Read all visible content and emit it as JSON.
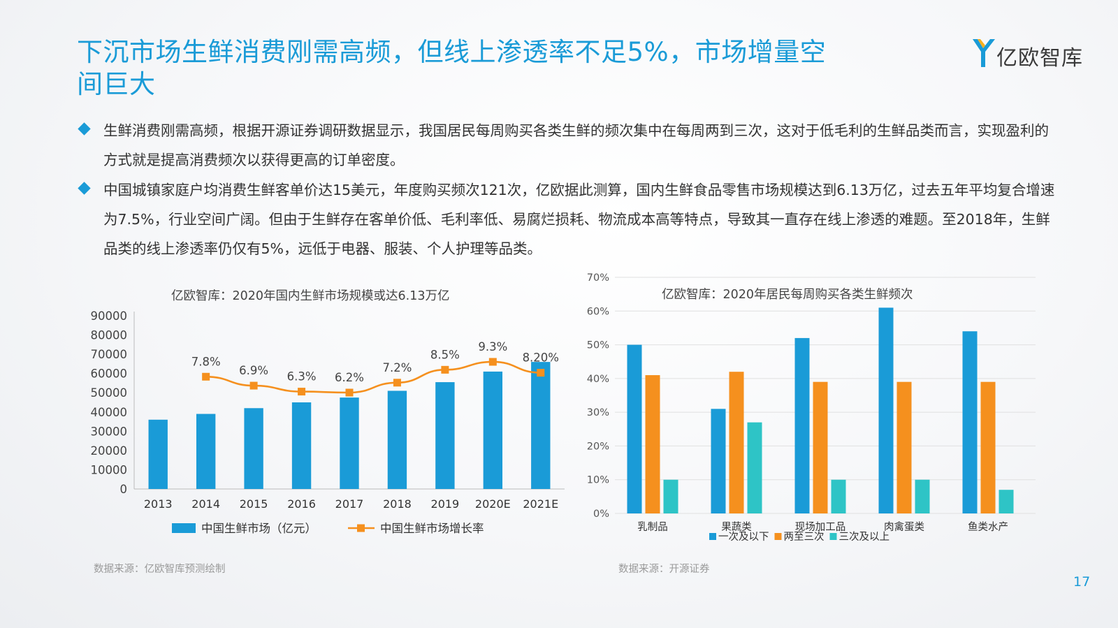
{
  "title": "下沉市场生鲜消费刚需高频，但线上渗透率不足5%，市场增量空间巨大",
  "logo": {
    "text": "亿欧智库"
  },
  "bullets": [
    "生鲜消费刚需高频，根据开源证券调研数据显示，我国居民每周购买各类生鲜的频次集中在每周两到三次，这对于低毛利的生鲜品类而言，实现盈利的方式就是提高消费频次以获得更高的订单密度。",
    "中国城镇家庭户均消费生鲜客单价达15美元，年度购买频次121次，亿欧据此测算，国内生鲜食品零售市场规模达到6.13万亿，过去五年平均复合增速为7.5%，行业空间广阔。但由于生鲜存在客单价低、毛利率低、易腐烂损耗、物流成本高等特点，导致其一直存在线上渗透的难题。至2018年，生鲜品类的线上渗透率仍仅有5%，远低于电器、服装、个人护理等品类。"
  ],
  "left_source": "数据来源：亿欧智库预测绘制",
  "right_source": "数据来源：开源证券",
  "page_number": "17",
  "colors": {
    "accent": "#1a9bd7",
    "bar_blue": "#1a9bd7",
    "orange": "#f5901e",
    "teal": "#2ec4c6"
  },
  "chart_data": [
    {
      "type": "bar",
      "title": "亿欧智库：2020年国内生鲜市场规模或达6.13万亿",
      "categories": [
        "2013",
        "2014",
        "2015",
        "2016",
        "2017",
        "2018",
        "2019",
        "2020E",
        "2021E"
      ],
      "series": [
        {
          "name": "中国生鲜市场（亿元）",
          "type": "bar",
          "values": [
            36000,
            39000,
            42000,
            45000,
            47500,
            51000,
            55500,
            61000,
            66000
          ]
        },
        {
          "name": "中国生鲜市场增长率",
          "type": "line",
          "values": [
            null,
            7.8,
            6.9,
            6.3,
            6.2,
            7.2,
            8.5,
            9.3,
            8.2
          ],
          "labels": [
            "",
            "7.8%",
            "6.9%",
            "6.3%",
            "6.2%",
            "7.2%",
            "8.5%",
            "9.3%",
            "8.20%"
          ]
        }
      ],
      "yticks": [
        "0",
        "10000",
        "20000",
        "30000",
        "40000",
        "50000",
        "60000",
        "70000",
        "80000",
        "90000"
      ],
      "ylim": [
        0,
        90000
      ],
      "legend_position": "bottom"
    },
    {
      "type": "bar",
      "title": "亿欧智库：2020年居民每周购买各类生鲜频次",
      "categories": [
        "乳制品",
        "果蔬类",
        "现场加工品",
        "肉禽蛋类",
        "鱼类水产"
      ],
      "series": [
        {
          "name": "一次及以下",
          "values": [
            50,
            31,
            52,
            61,
            54
          ]
        },
        {
          "name": "两至三次",
          "values": [
            41,
            42,
            39,
            39,
            39
          ]
        },
        {
          "name": "三次及以上",
          "values": [
            10,
            27,
            10,
            10,
            7
          ]
        }
      ],
      "yticks": [
        "0%",
        "10%",
        "20%",
        "30%",
        "40%",
        "50%",
        "60%",
        "70%"
      ],
      "ylim": [
        0,
        70
      ],
      "grid": true,
      "legend_position": "bottom"
    }
  ]
}
